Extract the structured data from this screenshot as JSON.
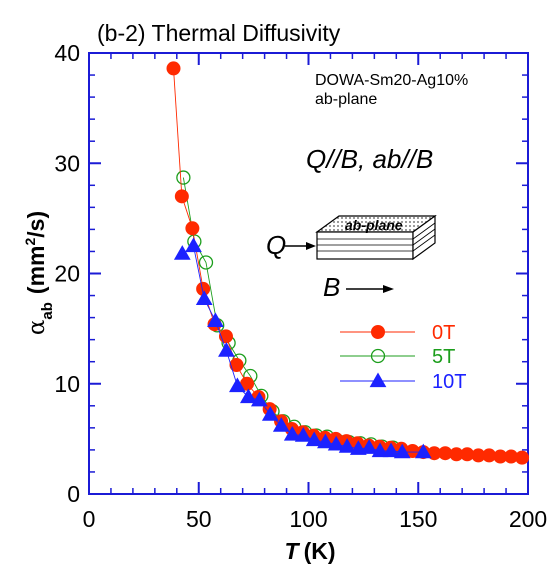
{
  "chart_data": {
    "type": "scatter",
    "title": "(b-2) Thermal Diffusivity",
    "annotations": {
      "sample": [
        "DOWA-Sm20-Ag10%",
        "ab-plane"
      ],
      "configuration": "Q//B, ab//B",
      "slab_label": "ab-plane",
      "q_label": "Q",
      "b_label": "B"
    },
    "xlabel": {
      "var": "T",
      "unit": "(K)"
    },
    "ylabel": {
      "alpha": "α",
      "sub": "ab",
      "unit_pre": "(mm",
      "unit_sup": "2",
      "unit_post": "/s)"
    },
    "xlim": [
      0,
      200
    ],
    "ylim": [
      0,
      40
    ],
    "x_ticks": [
      0,
      50,
      100,
      150,
      200
    ],
    "y_ticks": [
      0,
      10,
      20,
      30,
      40
    ],
    "grid": false,
    "legend_position": "right-middle",
    "series": [
      {
        "name": "0T",
        "color": "#ff2a00",
        "marker": "filled-circle",
        "x": [
          38.5,
          42.3,
          47.1,
          52.0,
          57.2,
          62.4,
          67.2,
          72.0,
          77.2,
          82.3,
          87.5,
          92.4,
          97.4,
          102.3,
          107.5,
          112.4,
          117.3,
          122.3,
          127.4,
          132.3,
          137.4,
          142.3,
          147.4,
          152.3,
          157.3,
          162.3,
          167.4,
          172.3,
          177.4,
          182.3,
          187.4,
          192.3,
          197.3
        ],
        "y": [
          38.6,
          27.0,
          24.1,
          18.6,
          15.4,
          14.3,
          11.7,
          10.0,
          8.8,
          7.7,
          6.6,
          5.9,
          5.6,
          5.3,
          5.1,
          5.0,
          4.8,
          4.6,
          4.4,
          4.3,
          4.2,
          4.1,
          3.9,
          3.8,
          3.7,
          3.7,
          3.6,
          3.6,
          3.5,
          3.5,
          3.4,
          3.4,
          3.3
        ]
      },
      {
        "name": "5T",
        "color": "#1c9e1c",
        "marker": "open-circle",
        "x": [
          43.0,
          48.0,
          53.3,
          58.4,
          63.6,
          68.5,
          73.5,
          78.5,
          83.6,
          88.5,
          93.5,
          98.5,
          103.6,
          108.5,
          113.5,
          118.5,
          123.6,
          128.5,
          133.5,
          138.5
        ],
        "y": [
          28.7,
          22.9,
          21.0,
          15.3,
          13.7,
          12.1,
          10.7,
          8.9,
          7.5,
          6.6,
          6.1,
          5.6,
          5.3,
          5.2,
          4.8,
          4.7,
          4.6,
          4.5,
          4.3,
          4.2
        ]
      },
      {
        "name": "10T",
        "color": "#1c22ff",
        "marker": "filled-triangle",
        "x": [
          42.5,
          47.6,
          52.5,
          57.6,
          62.6,
          67.6,
          72.6,
          77.6,
          82.6,
          87.6,
          92.6,
          97.6,
          102.6,
          107.7,
          112.6,
          117.6,
          122.7,
          127.6,
          132.6,
          137.6,
          142.7,
          152.3
        ],
        "y": [
          21.8,
          22.5,
          17.7,
          15.7,
          13.0,
          9.8,
          8.8,
          8.5,
          7.2,
          6.2,
          5.4,
          5.3,
          4.9,
          4.7,
          4.5,
          4.3,
          4.1,
          4.2,
          3.9,
          3.9,
          3.8,
          3.8
        ]
      }
    ]
  }
}
